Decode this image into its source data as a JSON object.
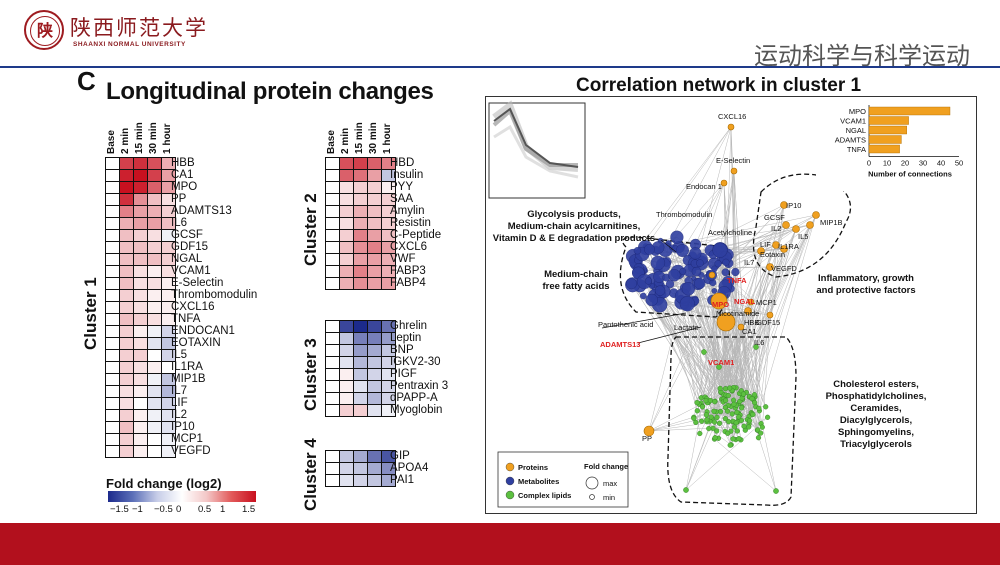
{
  "header": {
    "logo_char": "陕",
    "university_cn": "陕西师范大学",
    "university_en": "SHAANXI NORMAL UNIVERSITY",
    "course_title": "运动科学与科学运动"
  },
  "colors": {
    "accent_red": "#b2101d",
    "rule_blue": "#1e3a8a",
    "protein": "#f0a020",
    "metabolite": "#2f3fa0",
    "lipid": "#5cc040"
  },
  "heatmap": {
    "panel_label": "C",
    "title": "Longitudinal protein changes",
    "time_points": [
      "Base",
      "2 min",
      "15 min",
      "30 min",
      "1 hour"
    ],
    "clusters": [
      {
        "label": "Cluster 1",
        "rows": [
          {
            "name": "HBB",
            "values": [
              0,
              1.2,
              1.3,
              1.1,
              0.5
            ]
          },
          {
            "name": "CA1",
            "values": [
              0,
              1.4,
              1.5,
              1.2,
              0.6
            ]
          },
          {
            "name": "MPO",
            "values": [
              0,
              1.5,
              1.4,
              1.0,
              0.6
            ]
          },
          {
            "name": "PP",
            "values": [
              0,
              1.3,
              0.7,
              0.4,
              0.2
            ]
          },
          {
            "name": "ADAMTS13",
            "values": [
              0,
              0.8,
              0.6,
              0.5,
              0.3
            ]
          },
          {
            "name": "IL6",
            "values": [
              0,
              0.5,
              0.6,
              0.6,
              0.4
            ]
          },
          {
            "name": "GCSF",
            "values": [
              0,
              0.4,
              0.3,
              0.2,
              -0.1
            ]
          },
          {
            "name": "GDF15",
            "values": [
              0,
              0.4,
              0.4,
              0.3,
              0.3
            ]
          },
          {
            "name": "NGAL",
            "values": [
              0,
              0.4,
              0.4,
              0.4,
              0.3
            ]
          },
          {
            "name": "VCAM1",
            "values": [
              0,
              0.4,
              0.2,
              0.1,
              0.2
            ]
          },
          {
            "name": "E-Selectin",
            "values": [
              0,
              0.4,
              0.2,
              0.2,
              0.1
            ]
          },
          {
            "name": "Thrombomodulin",
            "values": [
              0,
              0.3,
              0.2,
              0.1,
              0.1
            ]
          },
          {
            "name": "CXCL16",
            "values": [
              0,
              0.3,
              0.2,
              0.1,
              0.1
            ]
          },
          {
            "name": "TNFA",
            "values": [
              0,
              0.4,
              0.3,
              0.2,
              0.1
            ]
          },
          {
            "name": "ENDOCAN1",
            "values": [
              0,
              0.3,
              0.1,
              -0.1,
              -0.3
            ]
          },
          {
            "name": "EOTAXIN",
            "values": [
              0,
              0.3,
              0.2,
              -0.2,
              -0.4
            ]
          },
          {
            "name": "IL5",
            "values": [
              0,
              0.3,
              0.3,
              0.0,
              -0.3
            ]
          },
          {
            "name": "IL1RA",
            "values": [
              0,
              0.3,
              0.2,
              0.1,
              0.0
            ]
          },
          {
            "name": "MIP1B",
            "values": [
              0,
              0.3,
              0.2,
              -0.1,
              -0.4
            ]
          },
          {
            "name": "IL7",
            "values": [
              0,
              0.2,
              0.1,
              -0.2,
              -0.5
            ]
          },
          {
            "name": "LIF",
            "values": [
              0,
              0.2,
              0.0,
              -0.2,
              -0.3
            ]
          },
          {
            "name": "IL2",
            "values": [
              0,
              0.3,
              0.1,
              -0.1,
              -0.2
            ]
          },
          {
            "name": "IP10",
            "values": [
              0,
              0.4,
              0.1,
              -0.1,
              -0.2
            ]
          },
          {
            "name": "MCP1",
            "values": [
              0,
              0.3,
              0.1,
              0.0,
              -0.1
            ]
          },
          {
            "name": "VEGFD",
            "values": [
              0,
              0.3,
              0.1,
              0.0,
              -0.1
            ]
          }
        ]
      },
      {
        "label": "Cluster 2",
        "rows": [
          {
            "name": "HBD",
            "values": [
              0,
              1.1,
              1.2,
              1.0,
              0.8
            ]
          },
          {
            "name": "Insulin",
            "values": [
              0,
              1.0,
              0.9,
              0.6,
              -0.4
            ]
          },
          {
            "name": "PYY",
            "values": [
              0,
              0.2,
              0.3,
              0.3,
              0.1
            ]
          },
          {
            "name": "SAA",
            "values": [
              0,
              0.2,
              0.3,
              0.3,
              0.3
            ]
          },
          {
            "name": "Amylin",
            "values": [
              0,
              0.3,
              0.5,
              0.4,
              0.3
            ]
          },
          {
            "name": "Resistin",
            "values": [
              0,
              0.2,
              0.5,
              0.4,
              0.3
            ]
          },
          {
            "name": "C-Peptide",
            "values": [
              0,
              0.3,
              0.8,
              0.6,
              0.4
            ]
          },
          {
            "name": "CXCL6",
            "values": [
              0,
              0.4,
              0.7,
              0.8,
              0.6
            ]
          },
          {
            "name": "VWF",
            "values": [
              0,
              0.3,
              0.6,
              0.6,
              0.5
            ]
          },
          {
            "name": "FABP3",
            "values": [
              0,
              0.5,
              0.8,
              0.6,
              0.5
            ]
          },
          {
            "name": "FABP4",
            "values": [
              0,
              0.5,
              0.7,
              0.6,
              0.6
            ]
          }
        ]
      },
      {
        "label": "Cluster 3",
        "rows": [
          {
            "name": "Ghrelin",
            "values": [
              0,
              -1.3,
              -1.5,
              -1.3,
              -1.0
            ]
          },
          {
            "name": "Leptin",
            "values": [
              0,
              -0.4,
              -0.9,
              -0.9,
              -0.7
            ]
          },
          {
            "name": "BNP",
            "values": [
              0,
              -0.3,
              -0.7,
              -0.6,
              -0.4
            ]
          },
          {
            "name": "IGKV2-30",
            "values": [
              0,
              -0.2,
              -0.5,
              -0.4,
              -0.3
            ]
          },
          {
            "name": "PIGF",
            "values": [
              0,
              0.1,
              -0.4,
              -0.3,
              -0.2
            ]
          },
          {
            "name": "Pentraxin 3",
            "values": [
              0,
              0.1,
              -0.2,
              -0.4,
              -0.3
            ]
          },
          {
            "name": "dPAPP-A",
            "values": [
              0,
              0.1,
              -0.3,
              -0.5,
              -0.3
            ]
          },
          {
            "name": "Myoglobin",
            "values": [
              0,
              0.3,
              0.3,
              -0.2,
              -0.1
            ]
          }
        ]
      },
      {
        "label": "Cluster 4",
        "rows": [
          {
            "name": "GIP",
            "values": [
              0,
              -0.4,
              -0.6,
              -1.0,
              -1.2
            ]
          },
          {
            "name": "APOA4",
            "values": [
              0,
              -0.3,
              -0.4,
              -0.6,
              -0.8
            ]
          },
          {
            "name": "PAI1",
            "values": [
              0,
              -0.2,
              -0.3,
              -0.4,
              -0.6
            ]
          }
        ]
      }
    ],
    "legend_title": "Fold change (log2)",
    "legend_ticks": [
      "−1.5",
      "−1",
      "−0.5",
      "0",
      "0.5",
      "1",
      "1.5"
    ]
  },
  "network": {
    "title": "Correlation network in cluster 1",
    "bar_chart": {
      "labels": [
        "MPO",
        "VCAM1",
        "NGAL",
        "ADAMTS",
        "TNFA"
      ],
      "values": [
        45,
        22,
        21,
        18,
        17
      ],
      "ticks": [
        "0",
        "10",
        "20",
        "30",
        "40",
        "50"
      ],
      "xlabel": "Number of connections"
    },
    "node_labels": [
      "CXCL16",
      "E-Selectin",
      "Endocan 1",
      "Thrombomodulin",
      "Acetylcholine",
      "IP10",
      "GCSF",
      "MIP1B",
      "IL2",
      "IL5",
      "LIF",
      "IL1RA",
      "Eotaxin",
      "IL7",
      "VEGFD",
      "MCP1",
      "Nicotinamide",
      "Pantothenic acid",
      "Lactate",
      "HBB",
      "CA1",
      "GDF15",
      "IL6",
      "PP"
    ],
    "highlight_labels": [
      "TNFA",
      "NGAL",
      "MPO",
      "ADAMTS13",
      "VCAM1"
    ],
    "annotations": {
      "glycolysis": [
        "Glycolysis products,",
        "Medium-chain acylcarnitines,",
        "Vitamin D & E degradation products"
      ],
      "fatty_acids": [
        "Medium-chain",
        "free fatty acids"
      ],
      "inflammatory": [
        "Inflammatory, growth",
        "and protective factors"
      ],
      "lipids": [
        "Cholesterol esters,",
        "Phosphatidylcholines,",
        "Ceramides,",
        "Diacylglycerols,",
        "Sphingomyelins,",
        "Triacylglycerols"
      ]
    },
    "legend": {
      "types": [
        "Proteins",
        "Metabolites",
        "Complex lipids"
      ],
      "size_title": "Fold change",
      "size_max": "max",
      "size_min": "min"
    }
  }
}
